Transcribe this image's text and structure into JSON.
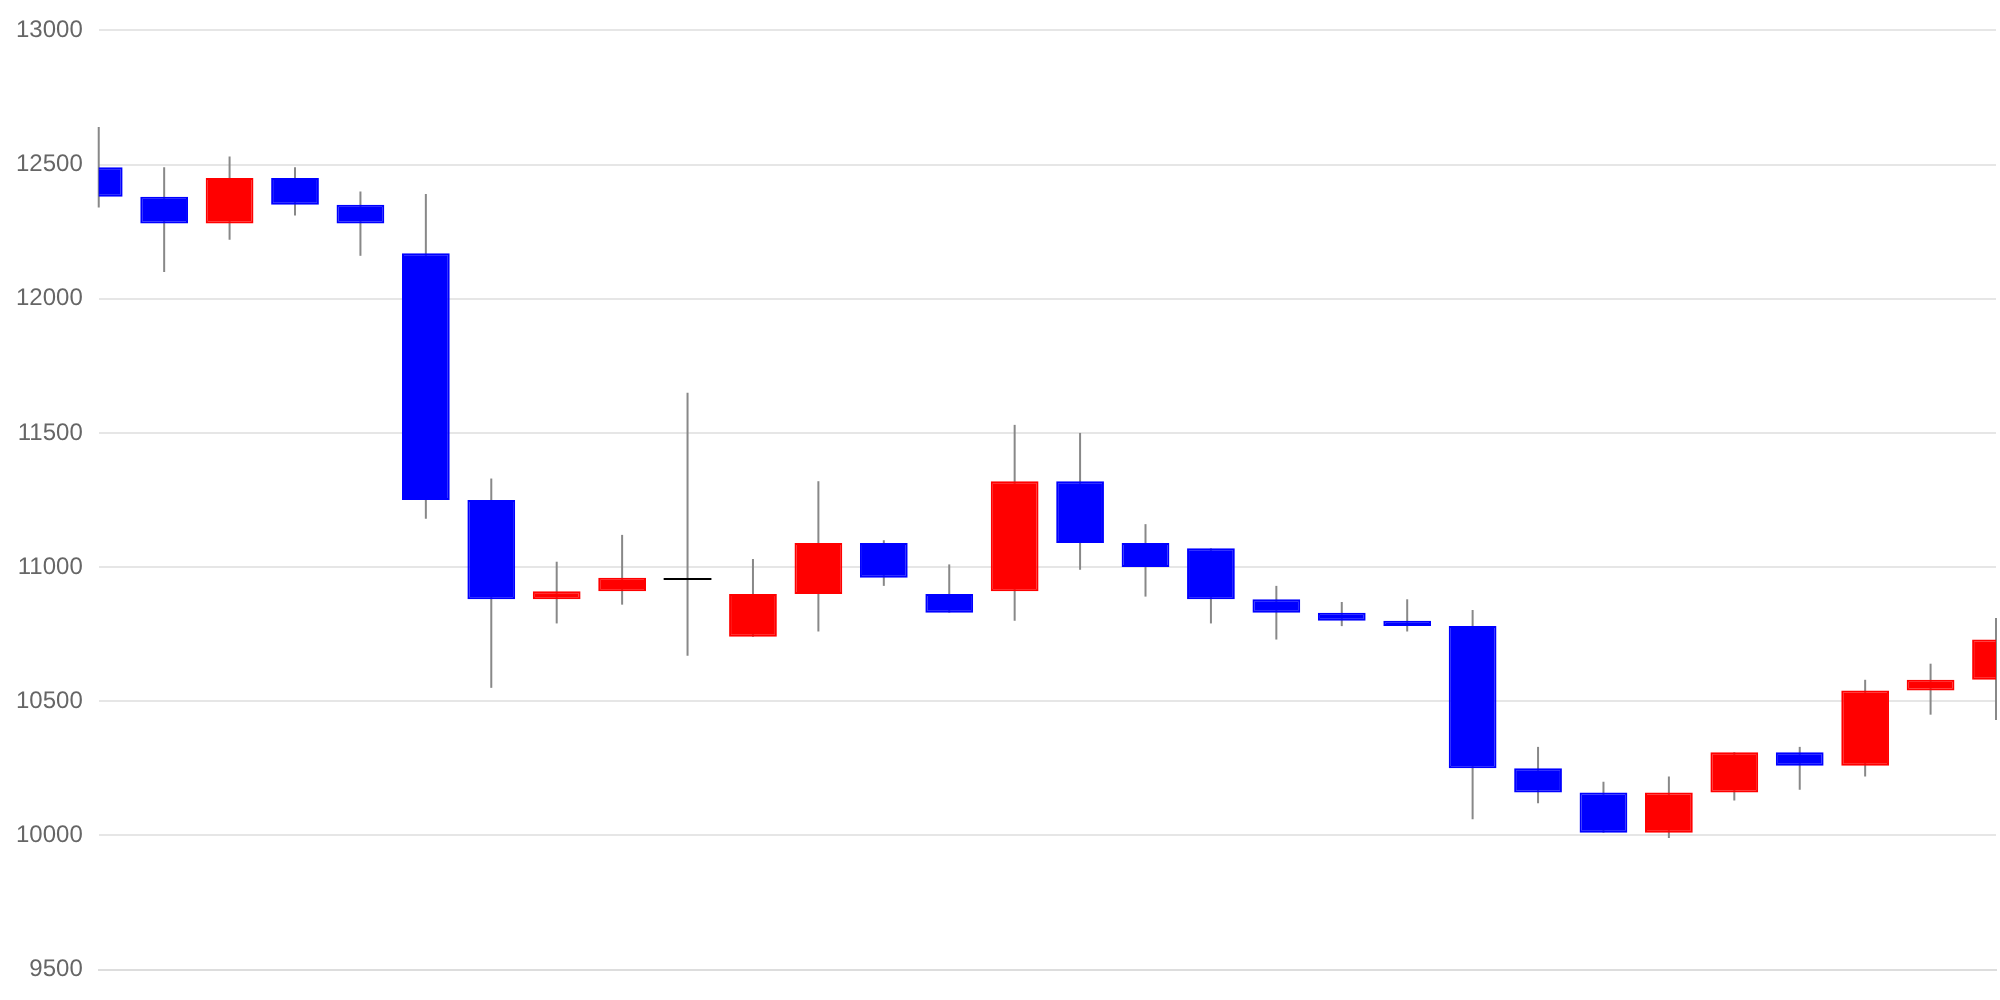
{
  "chart_data": {
    "type": "candlestick",
    "categories": [
      null,
      null,
      null,
      null,
      null,
      null,
      null,
      null,
      null,
      null,
      null,
      null,
      null,
      null,
      null,
      null,
      null,
      null,
      null,
      null,
      null,
      null,
      null,
      null,
      null,
      null,
      null,
      null,
      null,
      null
    ],
    "ohlc": [
      [
        12490,
        12640,
        12340,
        12380
      ],
      [
        12380,
        12490,
        12100,
        12280
      ],
      [
        12280,
        12530,
        12220,
        12450
      ],
      [
        12450,
        12490,
        12310,
        12350
      ],
      [
        12350,
        12400,
        12160,
        12280
      ],
      [
        12170,
        12390,
        11180,
        11250
      ],
      [
        11250,
        11330,
        10550,
        10880
      ],
      [
        10880,
        11020,
        10790,
        10910
      ],
      [
        10910,
        11120,
        10860,
        10960
      ],
      [
        10960,
        11650,
        10670,
        10960
      ],
      [
        10740,
        11030,
        10740,
        10900
      ],
      [
        10900,
        11320,
        10760,
        11090
      ],
      [
        11090,
        11100,
        10930,
        10960
      ],
      [
        10900,
        11010,
        10830,
        10830
      ],
      [
        10910,
        11530,
        10800,
        11320
      ],
      [
        11320,
        11500,
        10990,
        11090
      ],
      [
        11090,
        11160,
        10890,
        11000
      ],
      [
        11070,
        11070,
        10790,
        10880
      ],
      [
        10880,
        10930,
        10730,
        10830
      ],
      [
        10830,
        10870,
        10780,
        10800
      ],
      [
        10800,
        10880,
        10760,
        10780
      ],
      [
        10780,
        10840,
        10060,
        10250
      ],
      [
        10250,
        10330,
        10120,
        10160
      ],
      [
        10160,
        10200,
        10010,
        10010
      ],
      [
        10010,
        10220,
        9990,
        10160
      ],
      [
        10160,
        10310,
        10130,
        10310
      ],
      [
        10310,
        10330,
        10170,
        10260
      ],
      [
        10260,
        10580,
        10220,
        10540
      ],
      [
        10540,
        10640,
        10450,
        10580
      ],
      [
        10580,
        10810,
        10430,
        10730
      ]
    ],
    "colors": [
      "#0000ff",
      "#0000ff",
      "#ff0000",
      "#0000ff",
      "#0000ff",
      "#0000ff",
      "#0000ff",
      "#ff0000",
      "#ff0000",
      "#000000",
      "#ff0000",
      "#ff0000",
      "#0000ff",
      "#0000ff",
      "#ff0000",
      "#0000ff",
      "#0000ff",
      "#0000ff",
      "#0000ff",
      "#0000ff",
      "#0000ff",
      "#0000ff",
      "#0000ff",
      "#0000ff",
      "#ff0000",
      "#ff0000",
      "#0000ff",
      "#ff0000",
      "#ff0000",
      "#ff0000"
    ],
    "ylim": [
      9500,
      13000
    ],
    "yticks": [
      9500,
      10000,
      10500,
      11000,
      11500,
      12000,
      12500,
      13000
    ],
    "grid": "y",
    "tick_labels": "y",
    "legend": false
  }
}
